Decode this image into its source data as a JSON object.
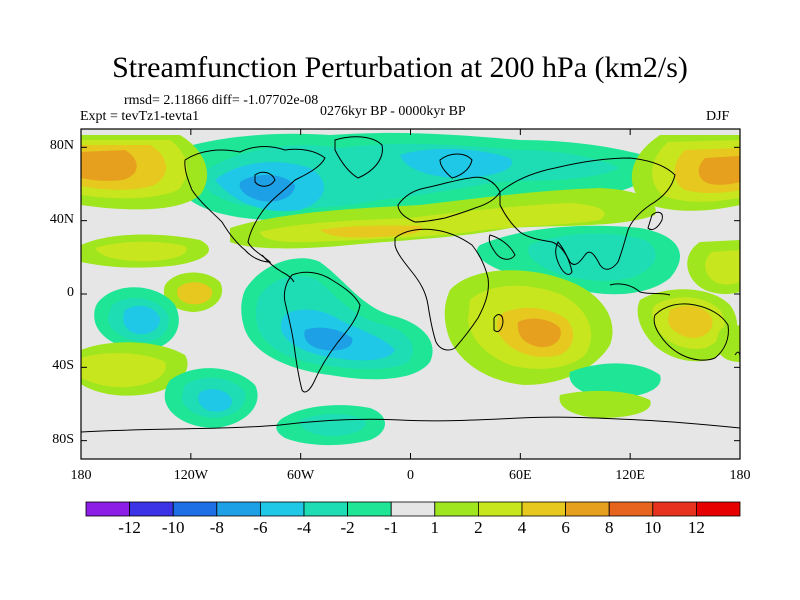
{
  "header": {
    "title": "Streamfunction Perturbation at 200 hPa (km2/s)",
    "stats": "rmsd= 2.11866 diff= -1.07702e-08",
    "experiment": "Expt = tevTz1-tevta1",
    "period": "0276kyr BP - 0000kyr BP",
    "season": "DJF"
  },
  "axes": {
    "lat_labels": [
      "80N",
      "40N",
      "0",
      "40S",
      "80S"
    ],
    "lat_values": [
      80,
      40,
      0,
      -40,
      -80
    ],
    "lon_labels": [
      "180",
      "120W",
      "60W",
      "0",
      "60E",
      "120E",
      "180"
    ],
    "lon_values": [
      -180,
      -120,
      -60,
      0,
      60,
      120,
      180
    ]
  },
  "colorbar": {
    "labels": [
      "-12",
      "-10",
      "-8",
      "-6",
      "-4",
      "-2",
      "-1",
      "1",
      "2",
      "4",
      "6",
      "8",
      "10",
      "12"
    ],
    "colors": [
      "#8c1ee6",
      "#3c32e6",
      "#1e6ee6",
      "#1ea0e6",
      "#1ec8e6",
      "#1edcb4",
      "#1ee696",
      "#e6e6e6",
      "#a0e61e",
      "#c8e61e",
      "#e6c81e",
      "#e6a01e",
      "#e6641e",
      "#e6321e",
      "#e60000"
    ]
  },
  "chart_data": {
    "type": "heatmap",
    "title": "Streamfunction Perturbation at 200 hPa (km2/s)",
    "units": "km2/s",
    "projection": "cylindrical equidistant",
    "xlim": [
      -180,
      180
    ],
    "ylim": [
      -90,
      90
    ],
    "contour_levels": [
      -12,
      -10,
      -8,
      -6,
      -4,
      -2,
      -1,
      1,
      2,
      4,
      6,
      8,
      10,
      12
    ],
    "features": [
      {
        "name": "north-pacific-high",
        "lon": -175,
        "lat": 65,
        "value": 6
      },
      {
        "name": "north-america-low",
        "lon": -80,
        "lat": 58,
        "value": -6
      },
      {
        "name": "eurasia-arctic-low",
        "lon": 35,
        "lat": 72,
        "value": -3
      },
      {
        "name": "east-asia-high",
        "lon": 168,
        "lat": 62,
        "value": 5
      },
      {
        "name": "north-atlantic-band",
        "lon": -20,
        "lat": 42,
        "value": 2
      },
      {
        "name": "south-asia-low",
        "lon": 90,
        "lat": 25,
        "value": -2
      },
      {
        "name": "south-america-low",
        "lon": -45,
        "lat": -22,
        "value": -5
      },
      {
        "name": "south-pacific-low",
        "lon": -145,
        "lat": -10,
        "value": -4
      },
      {
        "name": "indian-ocean-high",
        "lon": 65,
        "lat": -15,
        "value": 5
      },
      {
        "name": "south-indian-low",
        "lon": 100,
        "lat": -38,
        "value": -1
      },
      {
        "name": "australia-high",
        "lon": 148,
        "lat": -12,
        "value": 3
      },
      {
        "name": "antarctic-low",
        "lon": -35,
        "lat": -75,
        "value": -2
      }
    ]
  }
}
